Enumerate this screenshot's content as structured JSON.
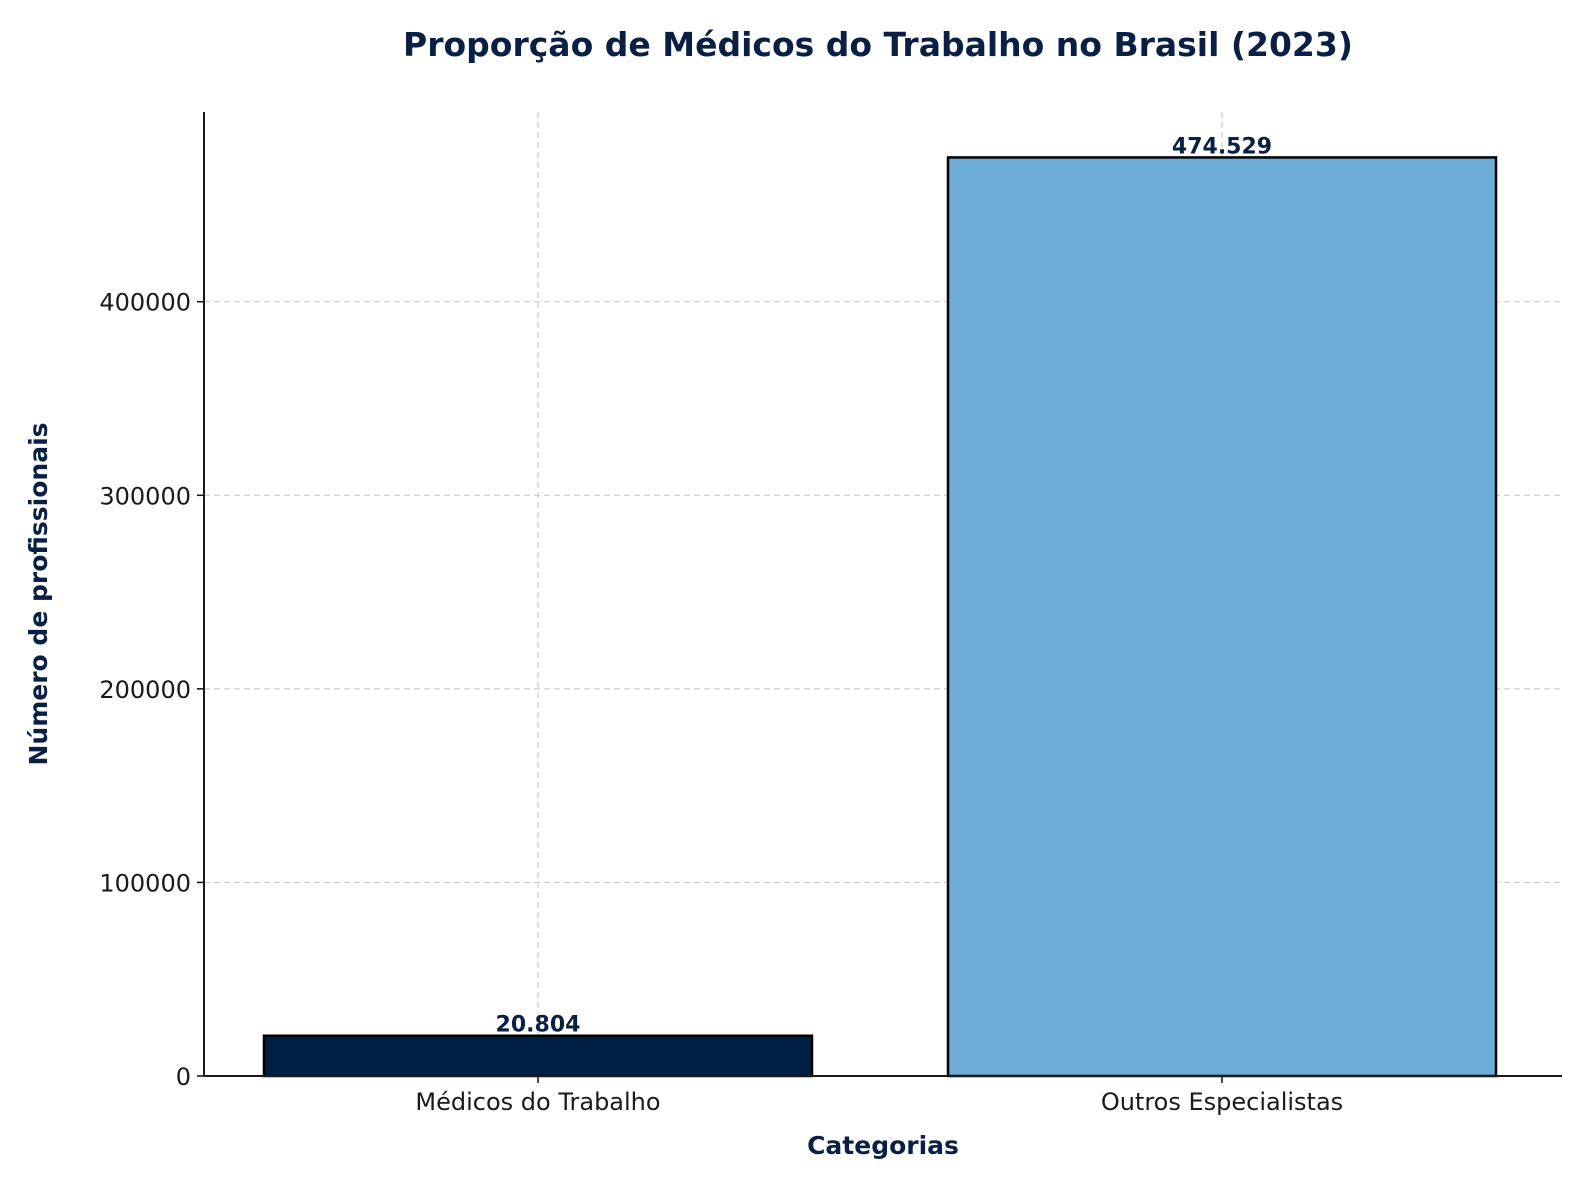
{
  "chart_data": {
    "type": "bar",
    "title": "Proporção de Médicos do Trabalho no Brasil (2023)",
    "xlabel": "Categorias",
    "ylabel": "Número de profissionais",
    "categories": [
      "Médicos do Trabalho",
      "Outros Especialistas"
    ],
    "values": [
      20804,
      474529
    ],
    "data_labels": [
      "20.804",
      "474.529"
    ],
    "colors": [
      "#001f45",
      "#6badd6"
    ],
    "ylim": [
      0,
      498000
    ],
    "yticks": [
      0,
      100000,
      200000,
      300000,
      400000
    ],
    "ytick_labels": [
      "0",
      "100000",
      "200000",
      "300000",
      "400000"
    ],
    "grid": true
  }
}
